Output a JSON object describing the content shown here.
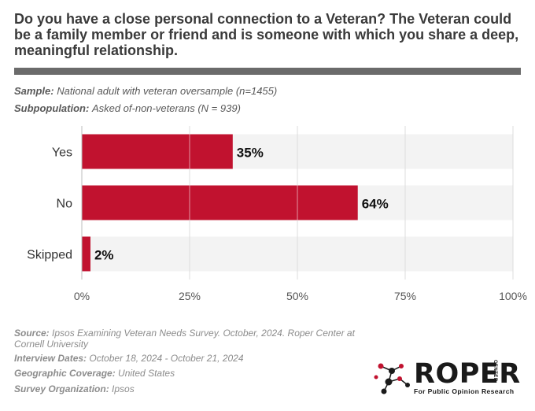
{
  "question": "Do you have a close personal connection to a Veteran? The Veteran could be a family member or friend and is someone with which you share a deep, meaningful relationship.",
  "sample": {
    "label": "Sample:",
    "value": "National adult with veteran oversample (n=1455)"
  },
  "subpopulation": {
    "label": "Subpopulation:",
    "value": "Asked of-non-veterans (N = 939)"
  },
  "chart_data": {
    "type": "bar",
    "orientation": "horizontal",
    "categories": [
      "Yes",
      "No",
      "Skipped"
    ],
    "values": [
      35,
      64,
      2
    ],
    "value_labels": [
      "35%",
      "64%",
      "2%"
    ],
    "xlim": [
      0,
      100
    ],
    "x_ticks": [
      0,
      25,
      50,
      75,
      100
    ],
    "x_tick_labels": [
      "0%",
      "25%",
      "50%",
      "75%",
      "100%"
    ],
    "bar_color": "#c1122f",
    "track_color": "#f3f3f3",
    "grid": true
  },
  "footer": {
    "source": {
      "label": "Source:",
      "value": "Ipsos Examining Veteran Needs Survey. October, 2024. Roper Center at Cornell University"
    },
    "dates": {
      "label": "Interview Dates:",
      "value": "October 18, 2024 - October 21, 2024"
    },
    "coverage": {
      "label": "Geographic Coverage:",
      "value": "United States"
    },
    "organization": {
      "label": "Survey Organization:",
      "value": "Ipsos"
    }
  },
  "logo": {
    "word": "ROPER",
    "tagline": "For Public Opinion Research",
    "center": "CENTER"
  }
}
